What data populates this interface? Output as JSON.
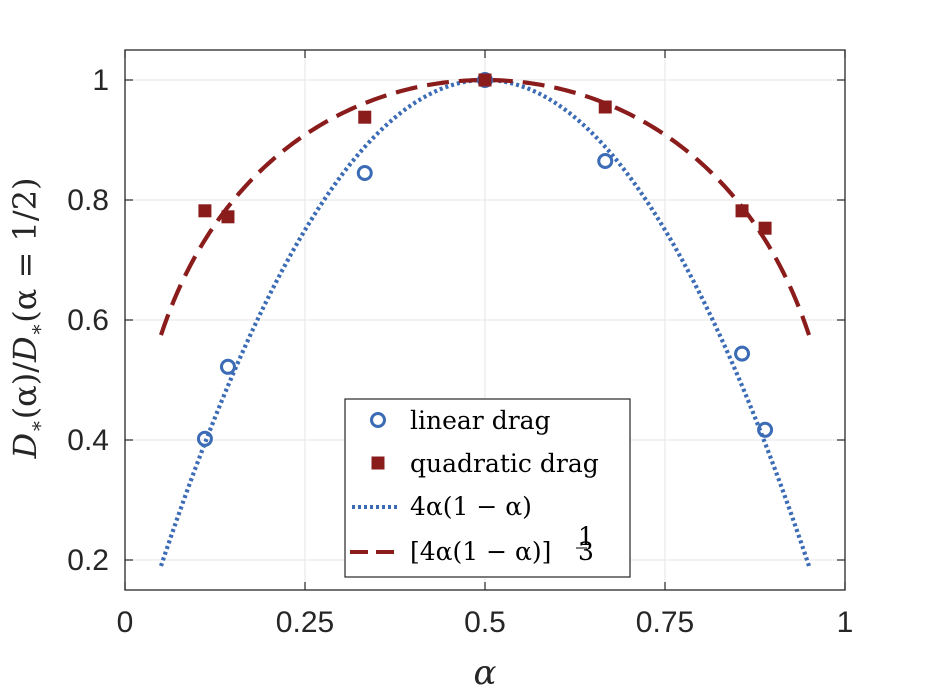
{
  "chart_data": {
    "type": "scatter",
    "xlabel": "α",
    "ylabel": {
      "D": "D",
      "sub": "∗",
      "arg": "(α)/",
      "D2": "D",
      "sub2": "∗",
      "arg2": "(α = 1/2)"
    },
    "xlim": [
      0,
      1
    ],
    "ylim": [
      0.15,
      1.05
    ],
    "grid": true,
    "legend_position": "bottom-center",
    "x_ticks": [
      {
        "value": 0,
        "label": "0"
      },
      {
        "value": 0.25,
        "label": "0.25"
      },
      {
        "value": 0.5,
        "label": "0.5"
      },
      {
        "value": 0.75,
        "label": "0.75"
      },
      {
        "value": 1,
        "label": "1"
      }
    ],
    "y_ticks": [
      {
        "value": 0.2,
        "label": "0.2"
      },
      {
        "value": 0.4,
        "label": "0.4"
      },
      {
        "value": 0.6,
        "label": "0.6"
      },
      {
        "value": 0.8,
        "label": "0.8"
      },
      {
        "value": 1,
        "label": "1"
      }
    ],
    "series": [
      {
        "name": "linear drag",
        "kind": "markers",
        "marker": "circle",
        "color": "#3b6cb5",
        "x": [
          0.111,
          0.143,
          0.333,
          0.5,
          0.667,
          0.857,
          0.889
        ],
        "y": [
          0.402,
          0.522,
          0.845,
          1.0,
          0.865,
          0.544,
          0.417
        ]
      },
      {
        "name": "quadratic drag",
        "kind": "markers",
        "marker": "square",
        "color": "#8b1c1c",
        "x": [
          0.111,
          0.143,
          0.333,
          0.5,
          0.667,
          0.857,
          0.889
        ],
        "y": [
          0.782,
          0.772,
          0.938,
          1.0,
          0.955,
          0.782,
          0.753
        ]
      },
      {
        "name": "4α(1 − α)",
        "kind": "curve",
        "formula": "4a(1-a)",
        "style": "dotted",
        "color": "#3b6cb5",
        "x_range": [
          0.05,
          0.95
        ]
      },
      {
        "name": "[4α(1 − α)]",
        "exponent": {
          "num": "1",
          "den": "3"
        },
        "kind": "curve",
        "formula": "(4a(1-a))^(1/3)",
        "style": "dashed",
        "color": "#8b1c1c",
        "x_range": [
          0.05,
          0.95
        ]
      }
    ]
  }
}
